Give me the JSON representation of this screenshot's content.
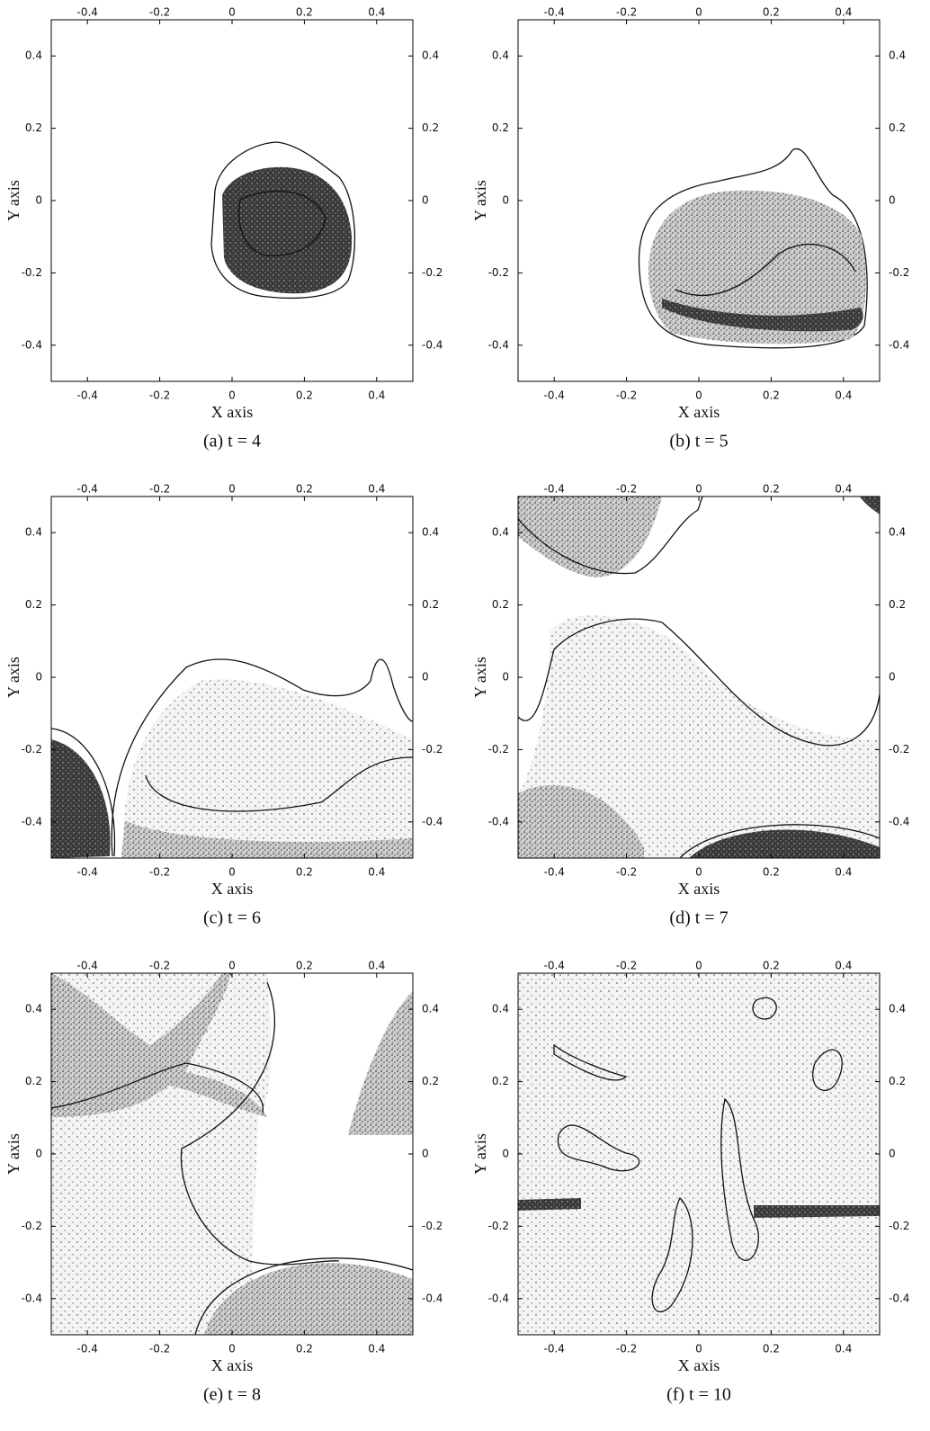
{
  "figure": {
    "x_label": "X axis",
    "y_label": "Y axis",
    "ticks": [
      -0.4,
      -0.2,
      0,
      0.2,
      0.4
    ],
    "panels": [
      {
        "caption": "(a) t = 4"
      },
      {
        "caption": "(b) t = 5"
      },
      {
        "caption": "(c) t = 6"
      },
      {
        "caption": "(d) t = 7"
      },
      {
        "caption": "(e) t = 8"
      },
      {
        "caption": "(f) t = 10"
      }
    ]
  }
}
